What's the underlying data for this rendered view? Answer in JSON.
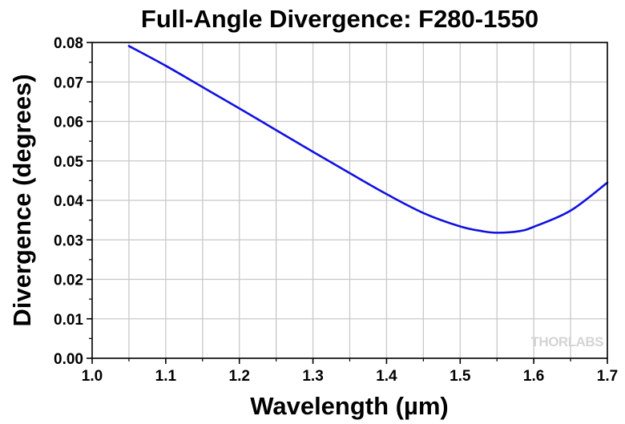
{
  "chart_data": {
    "type": "line",
    "title": "Full-Angle Divergence: F280-1550",
    "xlabel": "Wavelength (µm)",
    "ylabel": "Divergence (degrees)",
    "xlim": [
      1.0,
      1.7
    ],
    "ylim": [
      0.0,
      0.08
    ],
    "x_ticks": [
      "1.0",
      "1.1",
      "1.2",
      "1.3",
      "1.4",
      "1.5",
      "1.6",
      "1.7"
    ],
    "y_ticks": [
      "0.00",
      "0.01",
      "0.02",
      "0.03",
      "0.04",
      "0.05",
      "0.06",
      "0.07",
      "0.08"
    ],
    "grid": true,
    "series": [
      {
        "color": "#1010e0",
        "x": [
          1.05,
          1.1,
          1.15,
          1.2,
          1.25,
          1.3,
          1.35,
          1.4,
          1.45,
          1.5,
          1.53,
          1.55,
          1.58,
          1.6,
          1.65,
          1.7
        ],
        "y": [
          0.0791,
          0.0741,
          0.0687,
          0.0633,
          0.0578,
          0.0523,
          0.0469,
          0.0416,
          0.0368,
          0.0334,
          0.0322,
          0.0318,
          0.0322,
          0.0333,
          0.0374,
          0.0445
        ]
      }
    ]
  },
  "watermark": "THORLABS"
}
